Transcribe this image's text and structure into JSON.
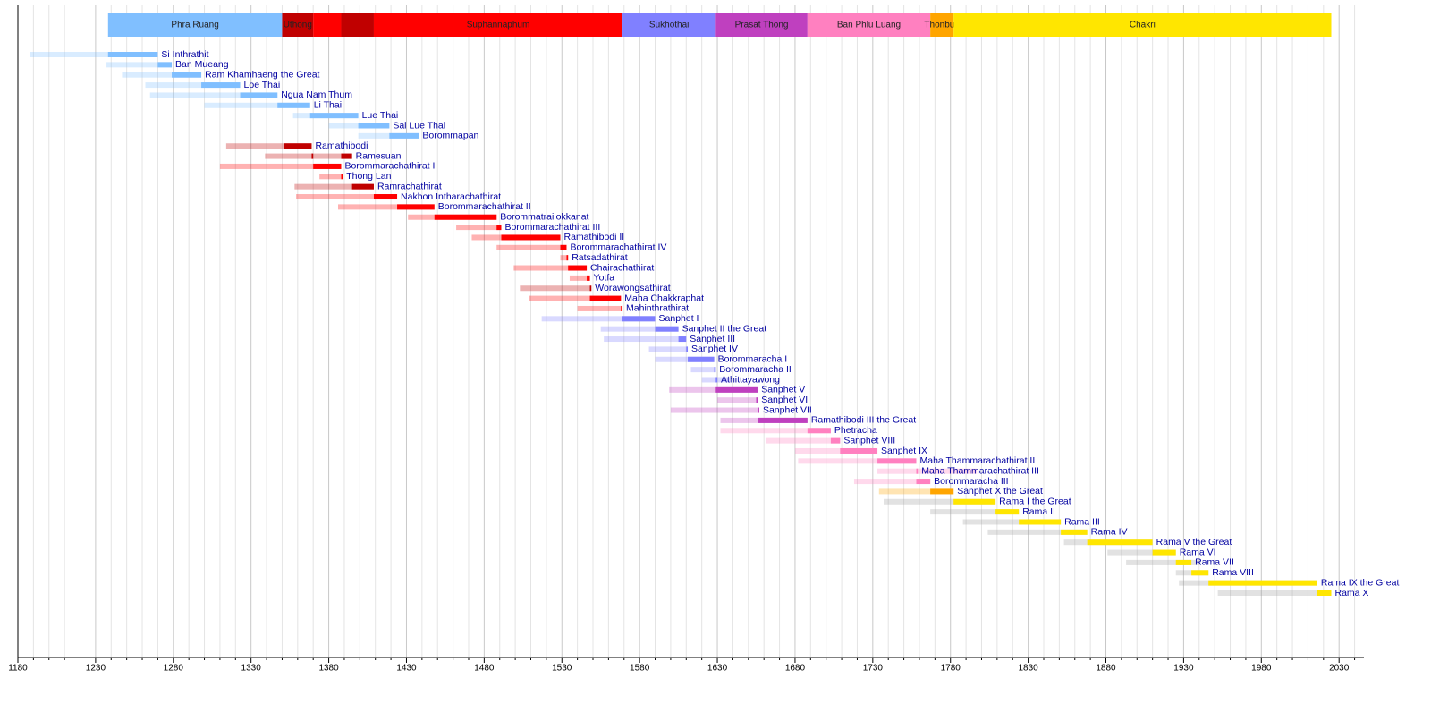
{
  "chart_data": {
    "type": "timeline",
    "xlim": [
      1180,
      2046
    ],
    "xticks": [
      1180,
      1230,
      1280,
      1330,
      1380,
      1430,
      1480,
      1530,
      1580,
      1630,
      1680,
      1730,
      1780,
      1830,
      1880,
      1930,
      1980,
      2030
    ],
    "xminor": [
      1190,
      1200,
      1210,
      1220,
      1240,
      1250,
      1260,
      1270,
      1290,
      1300,
      1310,
      1320,
      1340,
      1350,
      1360,
      1370,
      1390,
      1400,
      1410,
      1420,
      1440,
      1450,
      1460,
      1470,
      1490,
      1500,
      1510,
      1520,
      1540,
      1550,
      1560,
      1570,
      1590,
      1600,
      1610,
      1620,
      1640,
      1650,
      1660,
      1670,
      1690,
      1700,
      1710,
      1720,
      1740,
      1750,
      1760,
      1770,
      1790,
      1800,
      1810,
      1820,
      1840,
      1850,
      1860,
      1870,
      1890,
      1900,
      1910,
      1920,
      1940,
      1950,
      1960,
      1970,
      1990,
      2000,
      2010,
      2020,
      2040
    ],
    "grid": true,
    "dynasties": [
      {
        "name": "Phra Ruang",
        "start": 1238,
        "end": 1350,
        "color": "#80bfff"
      },
      {
        "name": "Uthong",
        "start": 1350,
        "end": 1370,
        "color": "#c00000"
      },
      {
        "name": null,
        "start": 1370,
        "end": 1388,
        "color": "#ff0000"
      },
      {
        "name": null,
        "start": 1388,
        "end": 1409,
        "color": "#c00000"
      },
      {
        "name": "Suphannaphum",
        "start": 1409,
        "end": 1569,
        "color": "#ff0000"
      },
      {
        "name": "Sukhothai",
        "start": 1569,
        "end": 1629,
        "color": "#8080ff"
      },
      {
        "name": "Prasat Thong",
        "start": 1629,
        "end": 1688,
        "color": "#bf40bf"
      },
      {
        "name": "Ban Phlu Luang",
        "start": 1688,
        "end": 1767,
        "color": "#ff80c0"
      },
      {
        "name": "Thonburi",
        "start": 1767,
        "end": 1782,
        "color": "#ffa500"
      },
      {
        "name": "Chakri",
        "start": 1782,
        "end": 2025,
        "color": "#ffe600"
      }
    ],
    "monarchs": [
      {
        "name": "Si Inthrathit",
        "born": 1188,
        "died": 1270,
        "reigns": [
          [
            1238,
            1270
          ]
        ],
        "color": "#80bfff"
      },
      {
        "name": "Ban Mueang",
        "born": 1237,
        "died": 1279,
        "reigns": [
          [
            1270,
            1279
          ]
        ],
        "color": "#80bfff"
      },
      {
        "name": "Ram Khamhaeng the Great",
        "born": 1247,
        "died": 1298,
        "reigns": [
          [
            1279,
            1298
          ]
        ],
        "color": "#80bfff"
      },
      {
        "name": "Loe Thai",
        "born": 1262,
        "died": 1323,
        "reigns": [
          [
            1298,
            1323
          ]
        ],
        "color": "#80bfff"
      },
      {
        "name": "Ngua Nam Thum",
        "born": 1265,
        "died": 1347,
        "reigns": [
          [
            1323,
            1347
          ]
        ],
        "color": "#80bfff"
      },
      {
        "name": "Li Thai",
        "born": 1300,
        "died": 1368,
        "reigns": [
          [
            1347,
            1368
          ]
        ],
        "color": "#80bfff"
      },
      {
        "name": "Lue Thai",
        "born": 1357,
        "died": 1399,
        "reigns": [
          [
            1368,
            1399
          ]
        ],
        "color": "#80bfff"
      },
      {
        "name": "Sai Lue Thai",
        "born": 1380,
        "died": 1419,
        "reigns": [
          [
            1399,
            1419
          ]
        ],
        "color": "#80bfff"
      },
      {
        "name": "Borommapan",
        "born": 1399,
        "died": 1438,
        "reigns": [
          [
            1419,
            1438
          ]
        ],
        "color": "#80bfff"
      },
      {
        "name": "Ramathibodi",
        "born": 1314,
        "died": 1369,
        "reigns": [
          [
            1351,
            1369
          ]
        ],
        "color": "#c00000"
      },
      {
        "name": "Ramesuan",
        "born": 1339,
        "died": 1395,
        "reigns": [
          [
            1369,
            1370
          ],
          [
            1388,
            1395
          ]
        ],
        "color": "#c00000"
      },
      {
        "name": "Borommarachathirat I",
        "born": 1310,
        "died": 1388,
        "reigns": [
          [
            1370,
            1388
          ]
        ],
        "color": "#ff0000"
      },
      {
        "name": "Thong Lan",
        "born": 1374,
        "died": 1388,
        "reigns": [
          [
            1388,
            1389
          ]
        ],
        "color": "#ff0000"
      },
      {
        "name": "Ramrachathirat",
        "born": 1358,
        "died": 1409,
        "reigns": [
          [
            1395,
            1409
          ]
        ],
        "color": "#c00000"
      },
      {
        "name": "Nakhon Intharachathirat",
        "born": 1359,
        "died": 1424,
        "reigns": [
          [
            1409,
            1424
          ]
        ],
        "color": "#ff0000"
      },
      {
        "name": "Borommarachathirat II",
        "born": 1386,
        "died": 1448,
        "reigns": [
          [
            1424,
            1448
          ]
        ],
        "color": "#ff0000"
      },
      {
        "name": "Borommatrailokkanat",
        "born": 1431,
        "died": 1488,
        "reigns": [
          [
            1448,
            1488
          ]
        ],
        "color": "#ff0000"
      },
      {
        "name": "Borommarachathirat III",
        "born": 1462,
        "died": 1491,
        "reigns": [
          [
            1488,
            1491
          ]
        ],
        "color": "#ff0000"
      },
      {
        "name": "Ramathibodi II",
        "born": 1472,
        "died": 1529,
        "reigns": [
          [
            1491,
            1529
          ]
        ],
        "color": "#ff0000"
      },
      {
        "name": "Borommarachathirat IV",
        "born": 1488,
        "died": 1533,
        "reigns": [
          [
            1529,
            1533
          ]
        ],
        "color": "#ff0000"
      },
      {
        "name": "Ratsadathirat",
        "born": 1529,
        "died": 1534,
        "reigns": [
          [
            1533,
            1534
          ]
        ],
        "color": "#ff0000"
      },
      {
        "name": "Chairachathirat",
        "born": 1499,
        "died": 1546,
        "reigns": [
          [
            1534,
            1546
          ]
        ],
        "color": "#ff0000"
      },
      {
        "name": "Yotfa",
        "born": 1535,
        "died": 1548,
        "reigns": [
          [
            1546,
            1548
          ]
        ],
        "color": "#ff0000"
      },
      {
        "name": "Worawongsathirat",
        "born": 1503,
        "died": 1548,
        "reigns": [
          [
            1548,
            1549
          ]
        ],
        "color": "#c00000"
      },
      {
        "name": "Maha Chakkraphat",
        "born": 1509,
        "died": 1568,
        "reigns": [
          [
            1548,
            1568
          ]
        ],
        "color": "#ff0000"
      },
      {
        "name": "Mahinthrathirat",
        "born": 1540,
        "died": 1569,
        "reigns": [
          [
            1568,
            1569
          ]
        ],
        "color": "#ff0000"
      },
      {
        "name": "Sanphet I",
        "born": 1517,
        "died": 1590,
        "reigns": [
          [
            1569,
            1590
          ]
        ],
        "color": "#8080ff"
      },
      {
        "name": "Sanphet II the Great",
        "born": 1555,
        "died": 1605,
        "reigns": [
          [
            1590,
            1605
          ]
        ],
        "color": "#8080ff"
      },
      {
        "name": "Sanphet III",
        "born": 1557,
        "died": 1610,
        "reigns": [
          [
            1605,
            1610
          ]
        ],
        "color": "#8080ff"
      },
      {
        "name": "Sanphet IV",
        "born": 1586,
        "died": 1611,
        "reigns": [
          [
            1610,
            1611
          ]
        ],
        "color": "#8080ff"
      },
      {
        "name": "Borommaracha I",
        "born": 1590,
        "died": 1628,
        "reigns": [
          [
            1611,
            1628
          ]
        ],
        "color": "#8080ff"
      },
      {
        "name": "Borommaracha II",
        "born": 1613,
        "died": 1629,
        "reigns": [
          [
            1628,
            1629
          ]
        ],
        "color": "#8080ff"
      },
      {
        "name": "Athittayawong",
        "born": 1620,
        "died": 1638,
        "reigns": [
          [
            1629,
            1630
          ]
        ],
        "color": "#8080ff"
      },
      {
        "name": "Sanphet V",
        "born": 1599,
        "died": 1656,
        "reigns": [
          [
            1629,
            1656
          ]
        ],
        "color": "#bf40bf"
      },
      {
        "name": "Sanphet VI",
        "born": 1630,
        "died": 1656,
        "reigns": [
          [
            1655,
            1656
          ]
        ],
        "color": "#bf40bf"
      },
      {
        "name": "Sanphet VII",
        "born": 1600,
        "died": 1656,
        "reigns": [
          [
            1656,
            1657
          ]
        ],
        "color": "#bf40bf"
      },
      {
        "name": "Ramathibodi III the Great",
        "born": 1632,
        "died": 1688,
        "reigns": [
          [
            1656,
            1688
          ]
        ],
        "color": "#bf40bf"
      },
      {
        "name": "Phetracha",
        "born": 1632,
        "died": 1703,
        "reigns": [
          [
            1688,
            1703
          ]
        ],
        "color": "#ff80c0"
      },
      {
        "name": "Sanphet VIII",
        "born": 1661,
        "died": 1709,
        "reigns": [
          [
            1703,
            1709
          ]
        ],
        "color": "#ff80c0"
      },
      {
        "name": "Sanphet IX",
        "born": 1680,
        "died": 1733,
        "reigns": [
          [
            1709,
            1733
          ]
        ],
        "color": "#ff80c0"
      },
      {
        "name": "Maha Thammarachathirat II",
        "born": 1682,
        "died": 1758,
        "reigns": [
          [
            1733,
            1758
          ]
        ],
        "color": "#ff80c0"
      },
      {
        "name": "Maha Thammarachathirat III",
        "born": 1733,
        "died": 1797,
        "reigns": [
          [
            1758,
            1759
          ]
        ],
        "color": "#ff80c0"
      },
      {
        "name": "Borommaracha III",
        "born": 1718,
        "died": 1767,
        "reigns": [
          [
            1758,
            1767
          ]
        ],
        "color": "#ff80c0"
      },
      {
        "name": "Sanphet X the Great",
        "born": 1734,
        "died": 1782,
        "reigns": [
          [
            1767,
            1782
          ]
        ],
        "color": "#ffa500"
      },
      {
        "name": "Rama I the Great",
        "born": 1737,
        "died": 1809,
        "reigns": [
          [
            1782,
            1809
          ]
        ],
        "color": "#ffe600",
        "life_color": "#a0a0a0"
      },
      {
        "name": "Rama II",
        "born": 1767,
        "died": 1824,
        "reigns": [
          [
            1809,
            1824
          ]
        ],
        "color": "#ffe600",
        "life_color": "#a0a0a0"
      },
      {
        "name": "Rama III",
        "born": 1788,
        "died": 1851,
        "reigns": [
          [
            1824,
            1851
          ]
        ],
        "color": "#ffe600",
        "life_color": "#a0a0a0"
      },
      {
        "name": "Rama IV",
        "born": 1804,
        "died": 1868,
        "reigns": [
          [
            1851,
            1868
          ]
        ],
        "color": "#ffe600",
        "life_color": "#a0a0a0"
      },
      {
        "name": "Rama V the Great",
        "born": 1853,
        "died": 1910,
        "reigns": [
          [
            1868,
            1910
          ]
        ],
        "color": "#ffe600",
        "life_color": "#a0a0a0"
      },
      {
        "name": "Rama VI",
        "born": 1881,
        "died": 1925,
        "reigns": [
          [
            1910,
            1925
          ]
        ],
        "color": "#ffe600",
        "life_color": "#a0a0a0"
      },
      {
        "name": "Rama VII",
        "born": 1893,
        "died": 1941,
        "reigns": [
          [
            1925,
            1935
          ]
        ],
        "color": "#ffe600",
        "life_color": "#a0a0a0"
      },
      {
        "name": "Rama VIII",
        "born": 1925,
        "died": 1946,
        "reigns": [
          [
            1935,
            1946
          ]
        ],
        "color": "#ffe600",
        "life_color": "#a0a0a0"
      },
      {
        "name": "Rama IX the Great",
        "born": 1927,
        "died": 2016,
        "reigns": [
          [
            1946,
            2016
          ]
        ],
        "color": "#ffe600",
        "life_color": "#a0a0a0"
      },
      {
        "name": "Rama X",
        "born": 1952,
        "died": 2025,
        "reigns": [
          [
            2016,
            2025
          ]
        ],
        "color": "#ffe600",
        "life_color": "#a0a0a0"
      }
    ]
  }
}
